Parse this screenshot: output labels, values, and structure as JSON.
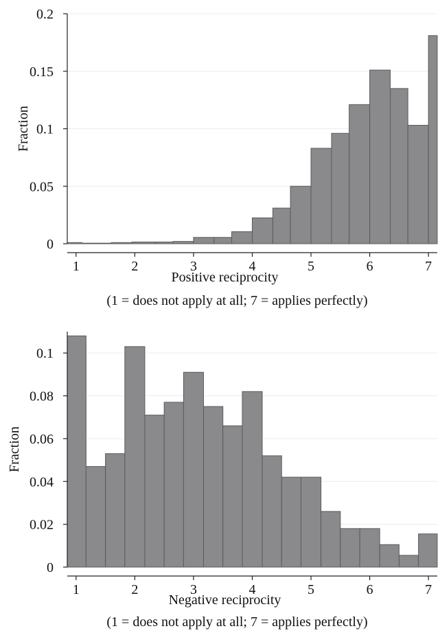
{
  "chart_data": [
    {
      "type": "bar",
      "xlabel": "Positive reciprocity",
      "sublabel": "(1 = does not apply at all; 7 = applies perfectly)",
      "ylabel": "Fraction",
      "grid": true,
      "xlim": [
        0.85,
        7.15
      ],
      "ylim": [
        0,
        0.2
      ],
      "xticks": [
        1,
        2,
        3,
        4,
        5,
        6,
        7
      ],
      "yticks": [
        0,
        0.05,
        0.1,
        0.15,
        0.2
      ],
      "ytick_labels": [
        "0",
        "0.05",
        "0.1",
        "0.15",
        "0.2"
      ],
      "bin_edges": [
        0.85,
        1.1,
        1.6,
        1.95,
        2.35,
        2.65,
        3.0,
        3.35,
        3.65,
        4.0,
        4.35,
        4.65,
        5.0,
        5.35,
        5.65,
        6.0,
        6.35,
        6.65,
        7.0,
        7.15
      ],
      "values": [
        0.001,
        0.0005,
        0.001,
        0.0015,
        0.0015,
        0.002,
        0.0055,
        0.0055,
        0.0105,
        0.0225,
        0.031,
        0.05,
        0.083,
        0.096,
        0.121,
        0.151,
        0.135,
        0.103,
        0.181
      ]
    },
    {
      "type": "bar",
      "xlabel": "Negative reciprocity",
      "sublabel": "(1 = does not apply at all; 7 = applies perfectly)",
      "ylabel": "Fraction",
      "grid": true,
      "xlim": [
        0.85,
        7.15
      ],
      "ylim": [
        0,
        0.11
      ],
      "xticks": [
        1,
        2,
        3,
        4,
        5,
        6,
        7
      ],
      "yticks": [
        0,
        0.02,
        0.04,
        0.06,
        0.08,
        0.1
      ],
      "ytick_labels": [
        "0",
        "0.02",
        "0.04",
        "0.06",
        "0.08",
        "0.1"
      ],
      "bin_edges": [
        0.85,
        1.17,
        1.5,
        1.83,
        2.17,
        2.5,
        2.83,
        3.17,
        3.5,
        3.83,
        4.17,
        4.5,
        4.83,
        5.17,
        5.5,
        5.83,
        6.17,
        6.5,
        6.83,
        7.15
      ],
      "values": [
        0.108,
        0.047,
        0.053,
        0.103,
        0.071,
        0.077,
        0.091,
        0.075,
        0.066,
        0.082,
        0.052,
        0.042,
        0.042,
        0.026,
        0.018,
        0.018,
        0.0105,
        0.0055,
        0.0155
      ]
    }
  ]
}
